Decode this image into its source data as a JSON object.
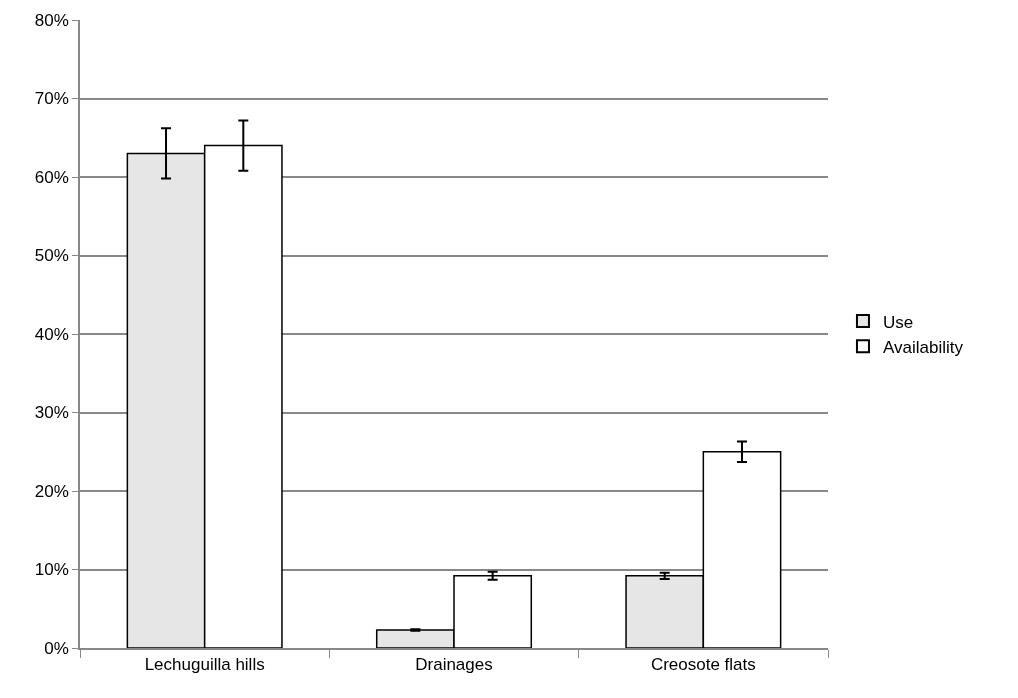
{
  "chart_data": {
    "type": "bar",
    "categories": [
      "Lechuguilla hills",
      "Drainages",
      "Creosote flats"
    ],
    "series": [
      {
        "name": "Use",
        "color": "#e6e6e6",
        "values": [
          63,
          2.3,
          9.2
        ],
        "errors": [
          3.2,
          0.1,
          0.4
        ]
      },
      {
        "name": "Availability",
        "color": "#ffffff",
        "values": [
          64,
          9.2,
          25
        ],
        "errors": [
          3.2,
          0.5,
          1.3
        ]
      }
    ],
    "ylim": [
      0,
      80
    ],
    "yticks": [
      {
        "value": 0,
        "label": "0%"
      },
      {
        "value": 10,
        "label": "10%"
      },
      {
        "value": 20,
        "label": "20%"
      },
      {
        "value": 30,
        "label": "30%"
      },
      {
        "value": 40,
        "label": "40%"
      },
      {
        "value": 50,
        "label": "50%"
      },
      {
        "value": 60,
        "label": "60%"
      },
      {
        "value": 70,
        "label": "70%"
      },
      {
        "value": 80,
        "label": "80%"
      }
    ],
    "grid": "y",
    "legend": "right"
  }
}
